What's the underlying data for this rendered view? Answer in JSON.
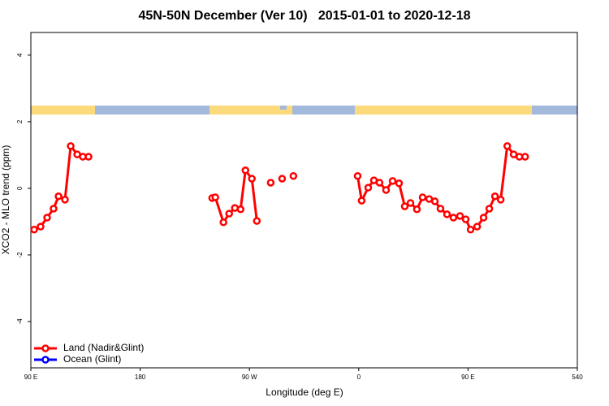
{
  "chart_data": {
    "type": "line",
    "title": "45N-50N December (Ver 10)   2015-01-01 to 2020-12-18",
    "xlabel": "Longitude (deg E)",
    "ylabel": "XCO2 - MLO trend (ppm)",
    "xlim": [
      90,
      540
    ],
    "xticks": [
      {
        "value": 90,
        "label": "90 E"
      },
      180,
      {
        "value": 270,
        "label": "90 W"
      },
      {
        "value": 360,
        "label": "0"
      },
      {
        "value": 450,
        "label": "90 E"
      },
      540
    ],
    "ylim": [
      -5.39,
      4.68
    ],
    "yticks": [
      -4,
      -2,
      0,
      2,
      4
    ],
    "legend": "bottom-left",
    "x": [
      92.7,
      98,
      103.4,
      108.7,
      112.8,
      118.1,
      122.8,
      128.2,
      132.8,
      137.5,
      null,
      239.3,
      241.9,
      248.6,
      253.3,
      258,
      262.7,
      266.7,
      272,
      276.1,
      null,
      287.5,
      null,
      296.9,
      null,
      306.2,
      null,
      359.1,
      362.4,
      367.8,
      372.5,
      377.1,
      382.5,
      387.9,
      393.2,
      397.9,
      402.6,
      407.9,
      412.6,
      418,
      422.7,
      427.3,
      432.7,
      438,
      443.4,
      448.1,
      452.1,
      457.5,
      462.8,
      467.5,
      472.2,
      476.9,
      482.3,
      487.6,
      492.3,
      497
    ],
    "series": [
      {
        "name": "Land (Nadir&Glint)",
        "color": "#ff0000",
        "values": [
          -1.24,
          -1.15,
          -0.88,
          -0.61,
          -0.24,
          -0.34,
          1.27,
          1.02,
          0.95,
          0.95,
          null,
          -0.29,
          -0.27,
          -1.02,
          -0.76,
          -0.59,
          -0.63,
          0.54,
          0.29,
          -0.98,
          null,
          0.17,
          null,
          0.29,
          null,
          0.37,
          null,
          0.37,
          -0.37,
          0.02,
          0.24,
          0.17,
          -0.05,
          0.22,
          0.15,
          -0.54,
          -0.44,
          -0.63,
          -0.27,
          -0.32,
          -0.39,
          -0.61,
          -0.78,
          -0.88,
          -0.83,
          -0.93,
          -1.24,
          -1.15,
          -0.88,
          -0.61,
          -0.24,
          -0.34,
          1.27,
          1.02,
          0.95,
          0.95
        ]
      },
      {
        "name": "Ocean (Glint)",
        "color": "#0000ff",
        "values": [
          null,
          null,
          null,
          null,
          null,
          null,
          null,
          null,
          null,
          null,
          null,
          null,
          null,
          null,
          null,
          null,
          null,
          null,
          null,
          null,
          null,
          null,
          null,
          null,
          null,
          null,
          null,
          null,
          null,
          null,
          null,
          null,
          null,
          null,
          null,
          null,
          null,
          null,
          null,
          null,
          null,
          null,
          null,
          null,
          null,
          null,
          null,
          null,
          null,
          null,
          null,
          null,
          null,
          null,
          null,
          null
        ]
      }
    ]
  }
}
